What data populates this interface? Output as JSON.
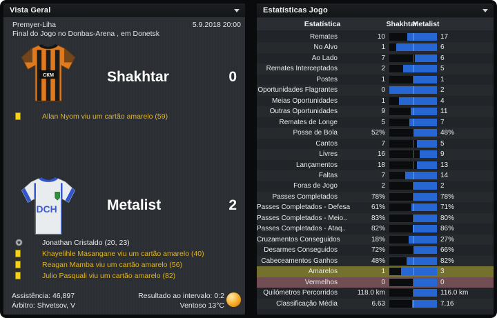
{
  "left_panel": {
    "title": "Vista Geral",
    "competition": "Premyer-Liha",
    "datetime": "5.9.2018 20:00",
    "subtitle": "Final do Jogo no Donbas-Arena , em Donetsk",
    "home": {
      "name": "Shakhtar",
      "score": "0",
      "shirt_text": "СКМ",
      "events": [
        {
          "type": "yellow-card",
          "icon": "yellow-card-icon",
          "text": "Allan Nyom viu um cartão amarelo (59)"
        }
      ]
    },
    "away": {
      "name": "Metalist",
      "score": "2",
      "shirt_text": "DCH",
      "events": [
        {
          "type": "goal",
          "icon": "football-icon",
          "text": "Jonathan Cristaldo (20, 23)"
        },
        {
          "type": "yellow-card",
          "icon": "yellow-card-icon",
          "text": "Khayelihle Masangane viu um cartão amarelo (40)"
        },
        {
          "type": "yellow-card",
          "icon": "yellow-card-icon",
          "text": "Reagan Mamba viu um cartão amarelo (56)"
        },
        {
          "type": "yellow-card",
          "icon": "yellow-card-icon",
          "text": "Julio Pasquali viu um cartão amarelo (82)"
        }
      ]
    },
    "footer": {
      "attendance": "Assistência: 46,897",
      "referee": "Árbitro: Shvetsov, V",
      "half_time": "Resultado ao intervalo: 0:2",
      "weather": "Ventoso 13°C",
      "weather_icon": "sunny-ball-icon"
    }
  },
  "right_panel": {
    "title": "Estatísticas Jogo",
    "columns": {
      "stat": "Estatística",
      "home": "Shakhtar",
      "away": "Metalist"
    },
    "colors": {
      "home_bar": "#0b0c0e",
      "away_bar": "#2767d4",
      "yellow_row_bg": "#74702e",
      "red_row_bg": "#714e54"
    },
    "rows": [
      {
        "label": "Remates",
        "home": "10",
        "away": "17"
      },
      {
        "label": "No Alvo",
        "home": "1",
        "away": "6"
      },
      {
        "label": "Ao Lado",
        "home": "7",
        "away": "6"
      },
      {
        "label": "Remates Interceptados",
        "home": "2",
        "away": "5"
      },
      {
        "label": "Postes",
        "home": "1",
        "away": "1"
      },
      {
        "label": "Oportunidades Flagrantes",
        "home": "0",
        "away": "2"
      },
      {
        "label": "Meias Oportunidades",
        "home": "1",
        "away": "4"
      },
      {
        "label": "Outras Oportunidades",
        "home": "9",
        "away": "11"
      },
      {
        "label": "Remates de Longe",
        "home": "5",
        "away": "7"
      },
      {
        "label": "Posse de Bola",
        "home": "52%",
        "away": "48%"
      },
      {
        "label": "Cantos",
        "home": "7",
        "away": "5"
      },
      {
        "label": "Livres",
        "home": "16",
        "away": "9"
      },
      {
        "label": "Lançamentos",
        "home": "18",
        "away": "13"
      },
      {
        "label": "Faltas",
        "home": "7",
        "away": "14"
      },
      {
        "label": "Foras de Jogo",
        "home": "2",
        "away": "2"
      },
      {
        "label": "Passes Completados",
        "home": "78%",
        "away": "78%"
      },
      {
        "label": "Passes Completados - Defesa",
        "home": "61%",
        "away": "71%"
      },
      {
        "label": "Passes Completados - Meio..",
        "home": "83%",
        "away": "80%"
      },
      {
        "label": "Passes Completados - Ataq..",
        "home": "82%",
        "away": "86%"
      },
      {
        "label": "Cruzamentos Conseguidos",
        "home": "18%",
        "away": "27%"
      },
      {
        "label": "Desarmes Conseguidos",
        "home": "72%",
        "away": "66%"
      },
      {
        "label": "Cabeceamentos Ganhos",
        "home": "48%",
        "away": "82%"
      },
      {
        "label": "Amarelos",
        "home": "1",
        "away": "3",
        "highlight": "yellow"
      },
      {
        "label": "Vermelhos",
        "home": "0",
        "away": "0",
        "highlight": "red"
      },
      {
        "label": "Quilómetros Percorridos",
        "home": "118.0 km",
        "away": "116.0 km"
      },
      {
        "label": "Classificação Média",
        "home": "6.63",
        "away": "7.16"
      }
    ]
  }
}
